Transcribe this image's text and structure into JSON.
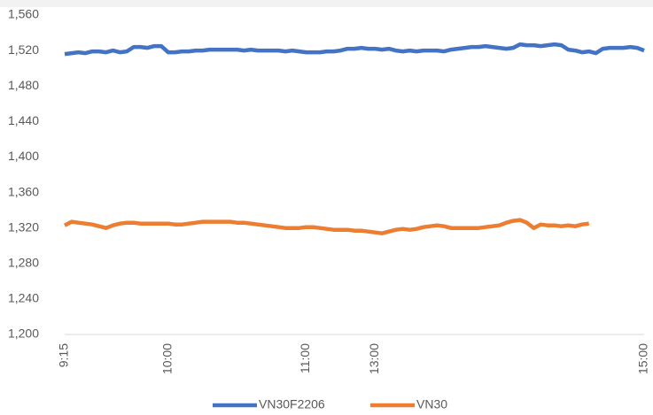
{
  "chart_data": {
    "type": "line",
    "categories": [
      "9:15",
      null,
      null,
      null,
      null,
      null,
      null,
      null,
      null,
      null,
      null,
      null,
      null,
      null,
      null,
      "10:00",
      null,
      null,
      null,
      null,
      null,
      null,
      null,
      null,
      null,
      null,
      null,
      null,
      null,
      null,
      null,
      null,
      null,
      null,
      null,
      "11:00",
      null,
      null,
      null,
      null,
      null,
      null,
      null,
      null,
      null,
      "13:00",
      null,
      null,
      null,
      null,
      null,
      null,
      null,
      null,
      null,
      null,
      null,
      null,
      null,
      null,
      null,
      null,
      null,
      null,
      null,
      null,
      null,
      null,
      null,
      null,
      null,
      null,
      null,
      null,
      null,
      null,
      null,
      null,
      null,
      null,
      null,
      null,
      null,
      null,
      "15:00"
    ],
    "series": [
      {
        "name": "VN30F2206",
        "color": "#4472c4",
        "values": [
          1516,
          1517,
          1518,
          1517,
          1519,
          1519,
          1518,
          1520,
          1518,
          1519,
          1524,
          1524,
          1523,
          1525,
          1525,
          1518,
          1518,
          1519,
          1519,
          1520,
          1520,
          1521,
          1521,
          1521,
          1521,
          1521,
          1520,
          1521,
          1520,
          1520,
          1520,
          1520,
          1519,
          1520,
          1519,
          1518,
          1518,
          1518,
          1519,
          1519,
          1520,
          1522,
          1522,
          1523,
          1522,
          1522,
          1521,
          1522,
          1520,
          1519,
          1520,
          1519,
          1520,
          1520,
          1520,
          1519,
          1521,
          1522,
          1523,
          1524,
          1524,
          1525,
          1524,
          1523,
          1522,
          1523,
          1527,
          1526,
          1526,
          1525,
          1526,
          1527,
          1526,
          1521,
          1520,
          1518,
          1519,
          1517,
          1522,
          1523,
          1523,
          1523,
          1524,
          1523,
          1520
        ]
      },
      {
        "name": "VN30",
        "color": "#ed7d31",
        "values": [
          1323,
          1327,
          1326,
          1325,
          1324,
          1322,
          1320,
          1323,
          1325,
          1326,
          1326,
          1325,
          1325,
          1325,
          1325,
          1325,
          1324,
          1324,
          1325,
          1326,
          1327,
          1327,
          1327,
          1327,
          1327,
          1326,
          1326,
          1325,
          1324,
          1323,
          1322,
          1321,
          1320,
          1320,
          1320,
          1321,
          1321,
          1320,
          1319,
          1318,
          1318,
          1318,
          1317,
          1317,
          1316,
          1315,
          1314,
          1316,
          1318,
          1319,
          1318,
          1319,
          1321,
          1322,
          1323,
          1322,
          1320,
          1320,
          1320,
          1320,
          1320,
          1321,
          1322,
          1323,
          1326,
          1328,
          1329,
          1326,
          1320,
          1324,
          1323,
          1323,
          1322,
          1323,
          1322,
          1324,
          1325,
          null,
          null,
          null,
          null,
          null,
          null,
          null,
          null
        ]
      }
    ],
    "ylim": [
      1200,
      1560
    ],
    "yticks": [
      {
        "value": 1200,
        "label": "1,200"
      },
      {
        "value": 1240,
        "label": "1,240"
      },
      {
        "value": 1280,
        "label": "1,280"
      },
      {
        "value": 1320,
        "label": "1,320"
      },
      {
        "value": 1360,
        "label": "1,360"
      },
      {
        "value": 1400,
        "label": "1,400"
      },
      {
        "value": 1440,
        "label": "1,440"
      },
      {
        "value": 1480,
        "label": "1,480"
      },
      {
        "value": 1520,
        "label": "1,520"
      },
      {
        "value": 1560,
        "label": "1,560"
      }
    ],
    "grid": false
  }
}
